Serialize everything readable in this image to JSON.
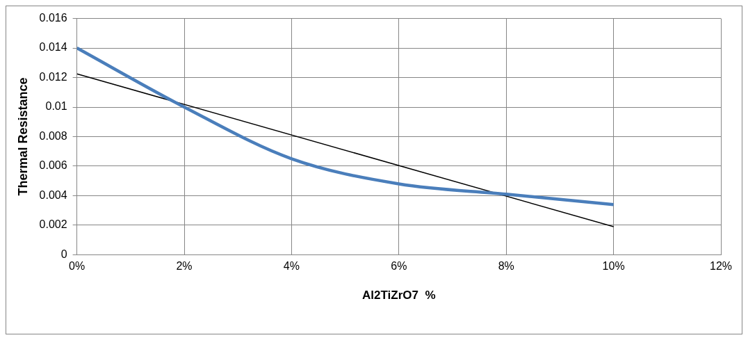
{
  "chart_data": {
    "type": "line",
    "xlabel": "Al2TiZrO7  %",
    "ylabel": "Thermal Resistance",
    "x": [
      0,
      2,
      4,
      6,
      8,
      10
    ],
    "series": [
      {
        "color": "#4a7ebb",
        "values": [
          0.014,
          0.01,
          0.0065,
          0.0048,
          0.0041,
          0.0034
        ]
      },
      {
        "color": "#000000",
        "x": [
          0,
          10
        ],
        "values": [
          0.01225,
          0.0019
        ]
      }
    ],
    "xlim": [
      0,
      12
    ],
    "xticks": [
      {
        "value": 0,
        "label": "0%"
      },
      {
        "value": 2,
        "label": "2%"
      },
      {
        "value": 4,
        "label": "4%"
      },
      {
        "value": 6,
        "label": "6%"
      },
      {
        "value": 8,
        "label": "8%"
      },
      {
        "value": 10,
        "label": "10%"
      },
      {
        "value": 12,
        "label": "12%"
      }
    ],
    "ylim": [
      0,
      0.016
    ],
    "yticks": [
      0,
      0.002,
      0.004,
      0.006,
      0.008,
      0.01,
      0.012,
      0.014,
      0.016
    ],
    "grid": true,
    "legend": false,
    "marker": "none",
    "line_style": "solid"
  }
}
